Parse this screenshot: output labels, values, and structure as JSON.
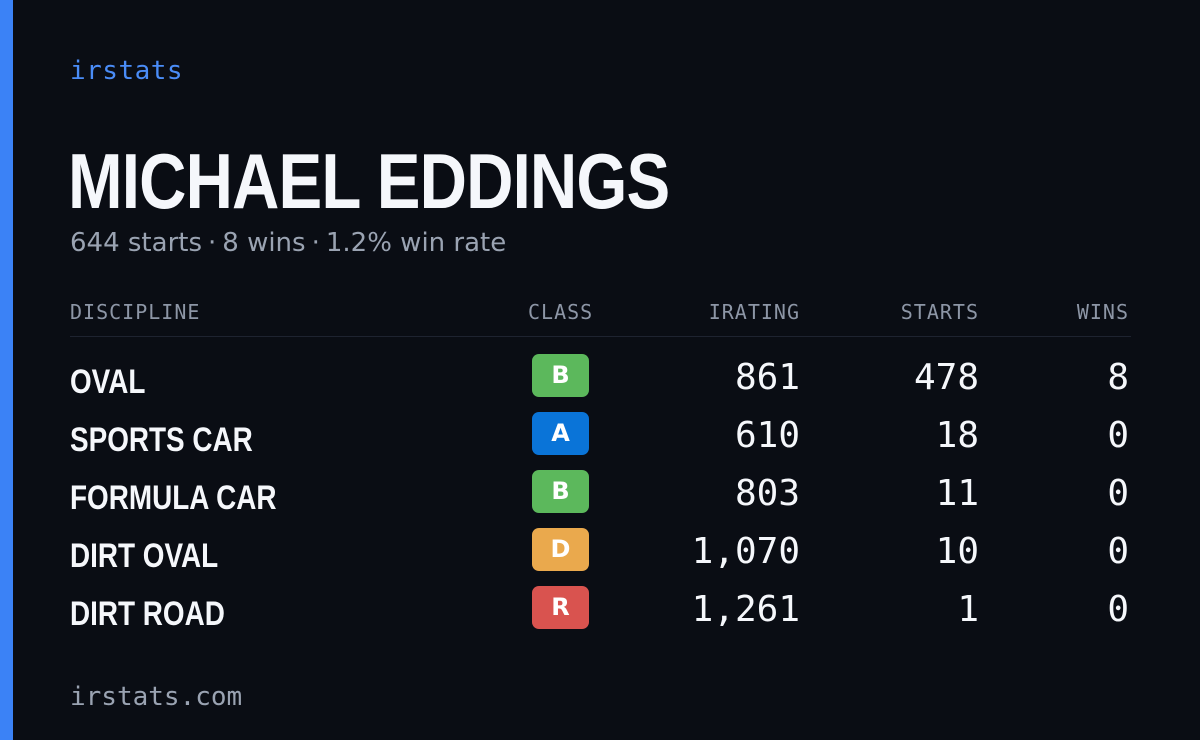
{
  "brand": "irstats",
  "driver": {
    "name": "MICHAEL EDDINGS",
    "starts_text": "644 starts",
    "wins_text": "8 wins",
    "win_rate_text": "1.2% win rate",
    "separator": "·"
  },
  "table": {
    "headers": {
      "discipline": "DISCIPLINE",
      "class": "CLASS",
      "irating": "IRATING",
      "starts": "STARTS",
      "wins": "WINS"
    },
    "rows": [
      {
        "discipline": "OVAL",
        "class": "B",
        "class_color": "#5cb85c",
        "irating": "861",
        "starts": "478",
        "wins": "8"
      },
      {
        "discipline": "SPORTS CAR",
        "class": "A",
        "class_color": "#0a74d8",
        "irating": "610",
        "starts": "18",
        "wins": "0"
      },
      {
        "discipline": "FORMULA CAR",
        "class": "B",
        "class_color": "#5cb85c",
        "irating": "803",
        "starts": "11",
        "wins": "0"
      },
      {
        "discipline": "DIRT OVAL",
        "class": "D",
        "class_color": "#eaa94d",
        "irating": "1,070",
        "starts": "10",
        "wins": "0"
      },
      {
        "discipline": "DIRT ROAD",
        "class": "R",
        "class_color": "#d9534f",
        "irating": "1,261",
        "starts": "1",
        "wins": "0"
      }
    ]
  },
  "footer": "irstats.com",
  "colors": {
    "accent": "#3b82f6",
    "background": "#0a0d14"
  }
}
